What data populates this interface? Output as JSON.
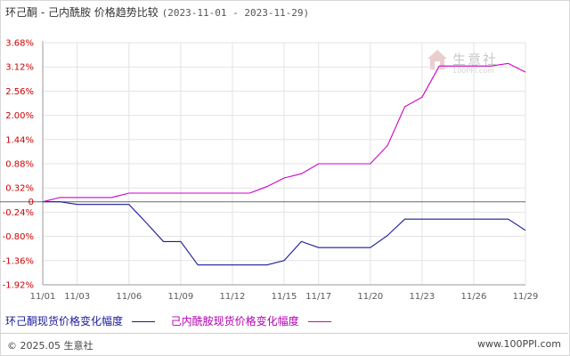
{
  "header": {
    "title": "环己酮 - 己内酰胺 价格趋势比较",
    "date_range": "(2023-11-01 - 2023-11-29)"
  },
  "footer": {
    "copyright": "© 2025.05 生意社",
    "url": "www.100PPI.com"
  },
  "watermark": {
    "text": "生意社",
    "url": "100PPI.com"
  },
  "colors": {
    "series1": "#1a1a99",
    "series2": "#cc00cc",
    "grid": "#e3e3e3",
    "axis": "#999999",
    "zero_label": "#cc0000"
  },
  "chart_data": {
    "type": "line",
    "x_ticks": [
      "11/01",
      "11/03",
      "11/06",
      "11/09",
      "11/12",
      "11/15",
      "11/17",
      "11/20",
      "11/23",
      "11/26",
      "11/29"
    ],
    "y_ticks": [
      "3.68%",
      "3.12%",
      "2.56%",
      "2.00%",
      "1.44%",
      "0.88%",
      "0.32%",
      "0",
      "-0.24%",
      "-0.80%",
      "-1.36%",
      "-1.92%"
    ],
    "ylim": [
      -1.92,
      3.68
    ],
    "ylabel": "",
    "xlabel": "",
    "grid": true,
    "legend_position": "bottom",
    "x": [
      "11/01",
      "11/02",
      "11/03",
      "11/04",
      "11/05",
      "11/06",
      "11/07",
      "11/08",
      "11/09",
      "11/10",
      "11/11",
      "11/12",
      "11/13",
      "11/14",
      "11/15",
      "11/16",
      "11/17",
      "11/18",
      "11/19",
      "11/20",
      "11/21",
      "11/22",
      "11/23",
      "11/24",
      "11/25",
      "11/26",
      "11/27",
      "11/28",
      "11/29"
    ],
    "series": [
      {
        "name": "环己酮现货价格变化幅度",
        "values": [
          0,
          0,
          -0.06,
          -0.06,
          -0.06,
          -0.06,
          -0.48,
          -0.92,
          -0.92,
          -1.46,
          -1.46,
          -1.46,
          -1.46,
          -1.46,
          -1.36,
          -0.92,
          -1.06,
          -1.06,
          -1.06,
          -1.06,
          -0.78,
          -0.4,
          -0.4,
          -0.4,
          -0.4,
          -0.4,
          -0.4,
          -0.4,
          -0.66
        ]
      },
      {
        "name": "己内酰胺现货价格变化幅度",
        "values": [
          0,
          0.1,
          0.1,
          0.1,
          0.1,
          0.2,
          0.2,
          0.2,
          0.2,
          0.2,
          0.2,
          0.2,
          0.2,
          0.35,
          0.55,
          0.65,
          0.88,
          0.88,
          0.88,
          0.88,
          1.3,
          2.2,
          2.42,
          3.14,
          3.14,
          3.14,
          3.14,
          3.2,
          3.0
        ]
      }
    ]
  }
}
